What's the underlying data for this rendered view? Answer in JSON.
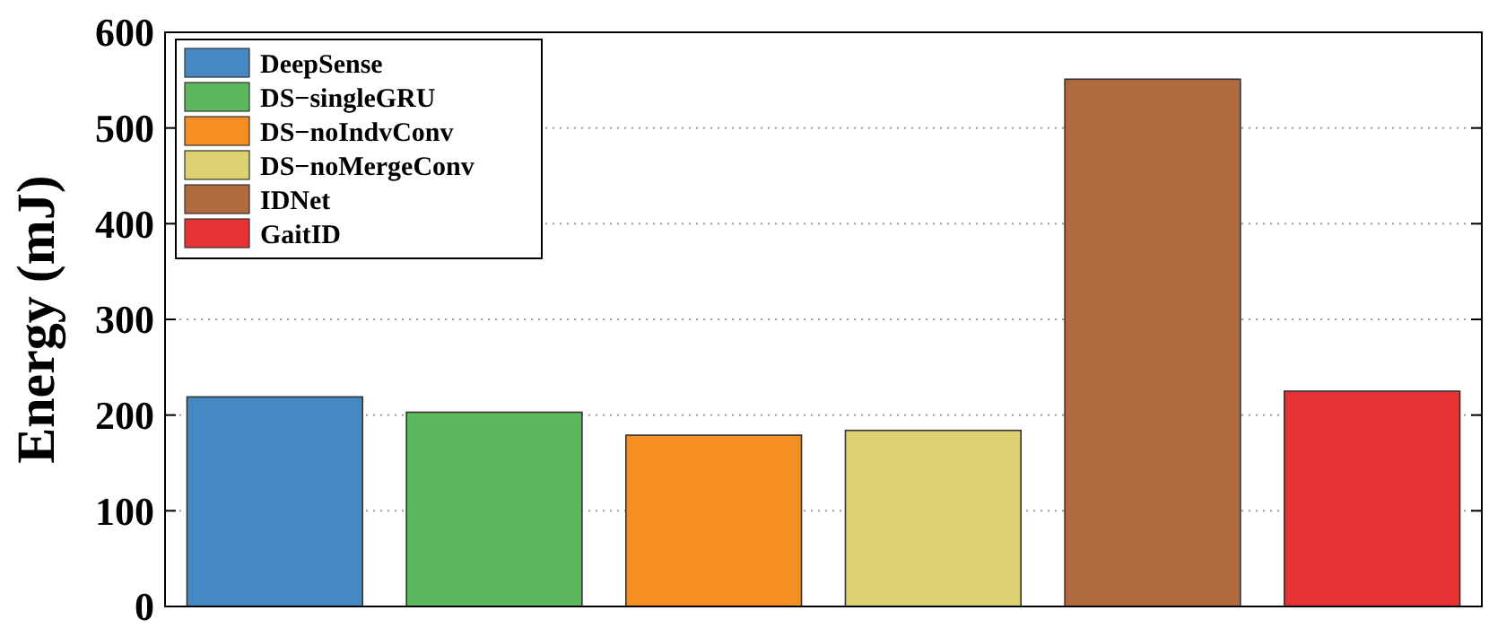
{
  "chart_data": {
    "type": "bar",
    "ylabel": "Energy (mJ)",
    "categories": [
      null,
      null,
      null,
      null,
      null,
      null
    ],
    "series": [
      {
        "name": "DeepSense",
        "color": "#4689c2",
        "values": [
          219,
          null,
          null,
          null,
          null,
          null
        ]
      },
      {
        "name": "DS−singleGRU",
        "color": "#5cb85c",
        "values": [
          null,
          203,
          null,
          null,
          null,
          null
        ]
      },
      {
        "name": "DS−noIndvConv",
        "color": "#f58f24",
        "values": [
          null,
          null,
          179,
          null,
          null,
          null
        ]
      },
      {
        "name": "DS−noMergeConv",
        "color": "#ddd171",
        "values": [
          null,
          null,
          null,
          184,
          null,
          null
        ]
      },
      {
        "name": "IDNet",
        "color": "#b06a3e",
        "values": [
          null,
          null,
          null,
          null,
          551,
          null
        ]
      },
      {
        "name": "GaitID",
        "color": "#e63233",
        "values": [
          null,
          null,
          null,
          null,
          null,
          225
        ]
      }
    ],
    "ylim": [
      0,
      600
    ],
    "yticks": [
      0,
      100,
      200,
      300,
      400,
      500,
      600
    ],
    "grid": "y",
    "legend": "top left"
  }
}
